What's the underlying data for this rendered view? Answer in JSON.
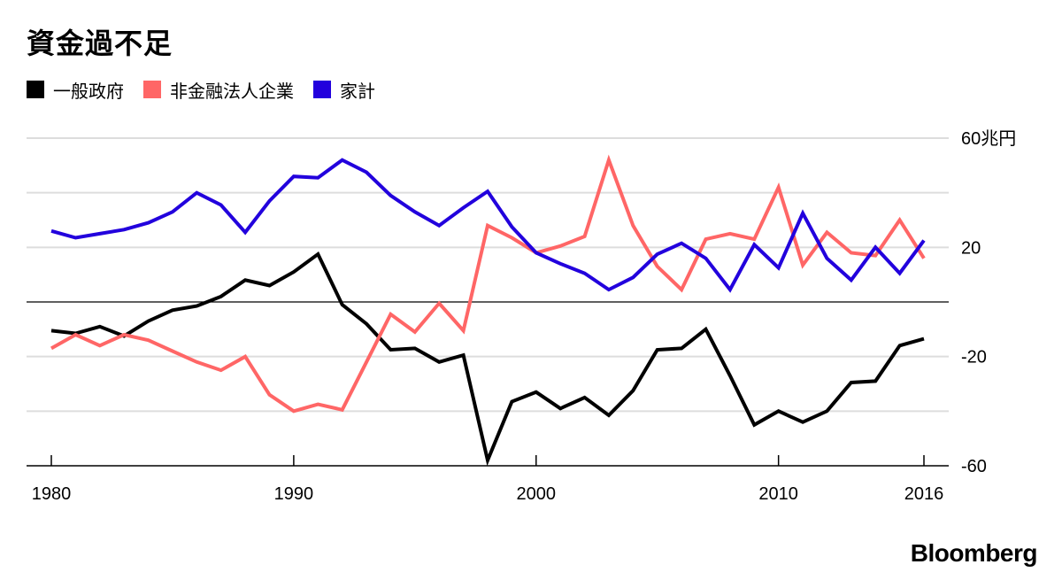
{
  "chart_data": {
    "type": "line",
    "title": "資金過不足",
    "unit_label": "60兆円",
    "xlabel": "",
    "ylabel": "",
    "xlim": [
      1980,
      2016
    ],
    "ylim": [
      -60,
      60
    ],
    "y_ticks": [
      60,
      40,
      20,
      0,
      -20,
      -40,
      -60
    ],
    "y_tick_labels": [
      "60兆円",
      "",
      "20",
      "",
      "-20",
      "",
      "-60"
    ],
    "x_ticks": [
      1980,
      1990,
      2000,
      2010,
      2016
    ],
    "x_tick_labels": [
      "1980",
      "1990",
      "2000",
      "2010",
      "2016"
    ],
    "legend_position": "top-left",
    "grid": true,
    "x": [
      1980,
      1981,
      1982,
      1983,
      1984,
      1985,
      1986,
      1987,
      1988,
      1989,
      1990,
      1991,
      1992,
      1993,
      1994,
      1995,
      1996,
      1997,
      1998,
      1999,
      2000,
      2001,
      2002,
      2003,
      2004,
      2005,
      2006,
      2007,
      2008,
      2009,
      2010,
      2011,
      2012,
      2013,
      2014,
      2015,
      2016
    ],
    "series": [
      {
        "name": "一般政府",
        "color": "#000000",
        "values": [
          -10.5,
          -11.5,
          -9,
          -12.5,
          -7,
          -3,
          -1.5,
          2,
          8,
          6,
          11,
          17.5,
          -1,
          -8,
          -17.5,
          -17,
          -22,
          -19.5,
          -58,
          -36.5,
          -33,
          -39,
          -35,
          -41.5,
          -32.5,
          -17.5,
          -17,
          -10,
          -27,
          -45,
          -40,
          -44,
          -40,
          -29.5,
          -29,
          -16,
          -13.5
        ]
      },
      {
        "name": "非金融法人企業",
        "color": "#FF6666",
        "values": [
          -17,
          -12,
          -16,
          -12,
          -14,
          -18,
          -22,
          -25,
          -20,
          -34,
          -40,
          -37.5,
          -39.5,
          -22,
          -4.5,
          -11,
          -0.5,
          -10.5,
          28,
          23.5,
          18,
          20.5,
          24,
          52,
          28,
          13,
          4.5,
          23,
          25,
          23,
          42,
          13.5,
          25.5,
          18,
          17,
          30,
          16
        ]
      },
      {
        "name": "家計",
        "color": "#2200DD",
        "values": [
          26,
          23.5,
          25,
          26.5,
          29,
          33,
          40,
          35.5,
          25.5,
          37,
          46,
          45.5,
          52,
          47.5,
          39,
          33,
          28,
          34.5,
          40.5,
          27.5,
          18,
          14,
          10.5,
          4.5,
          9,
          17.5,
          21.5,
          16,
          4.5,
          21,
          12.5,
          32.5,
          16,
          8,
          20,
          10.5,
          22.5
        ]
      }
    ]
  },
  "branding": {
    "source": "Bloomberg"
  }
}
